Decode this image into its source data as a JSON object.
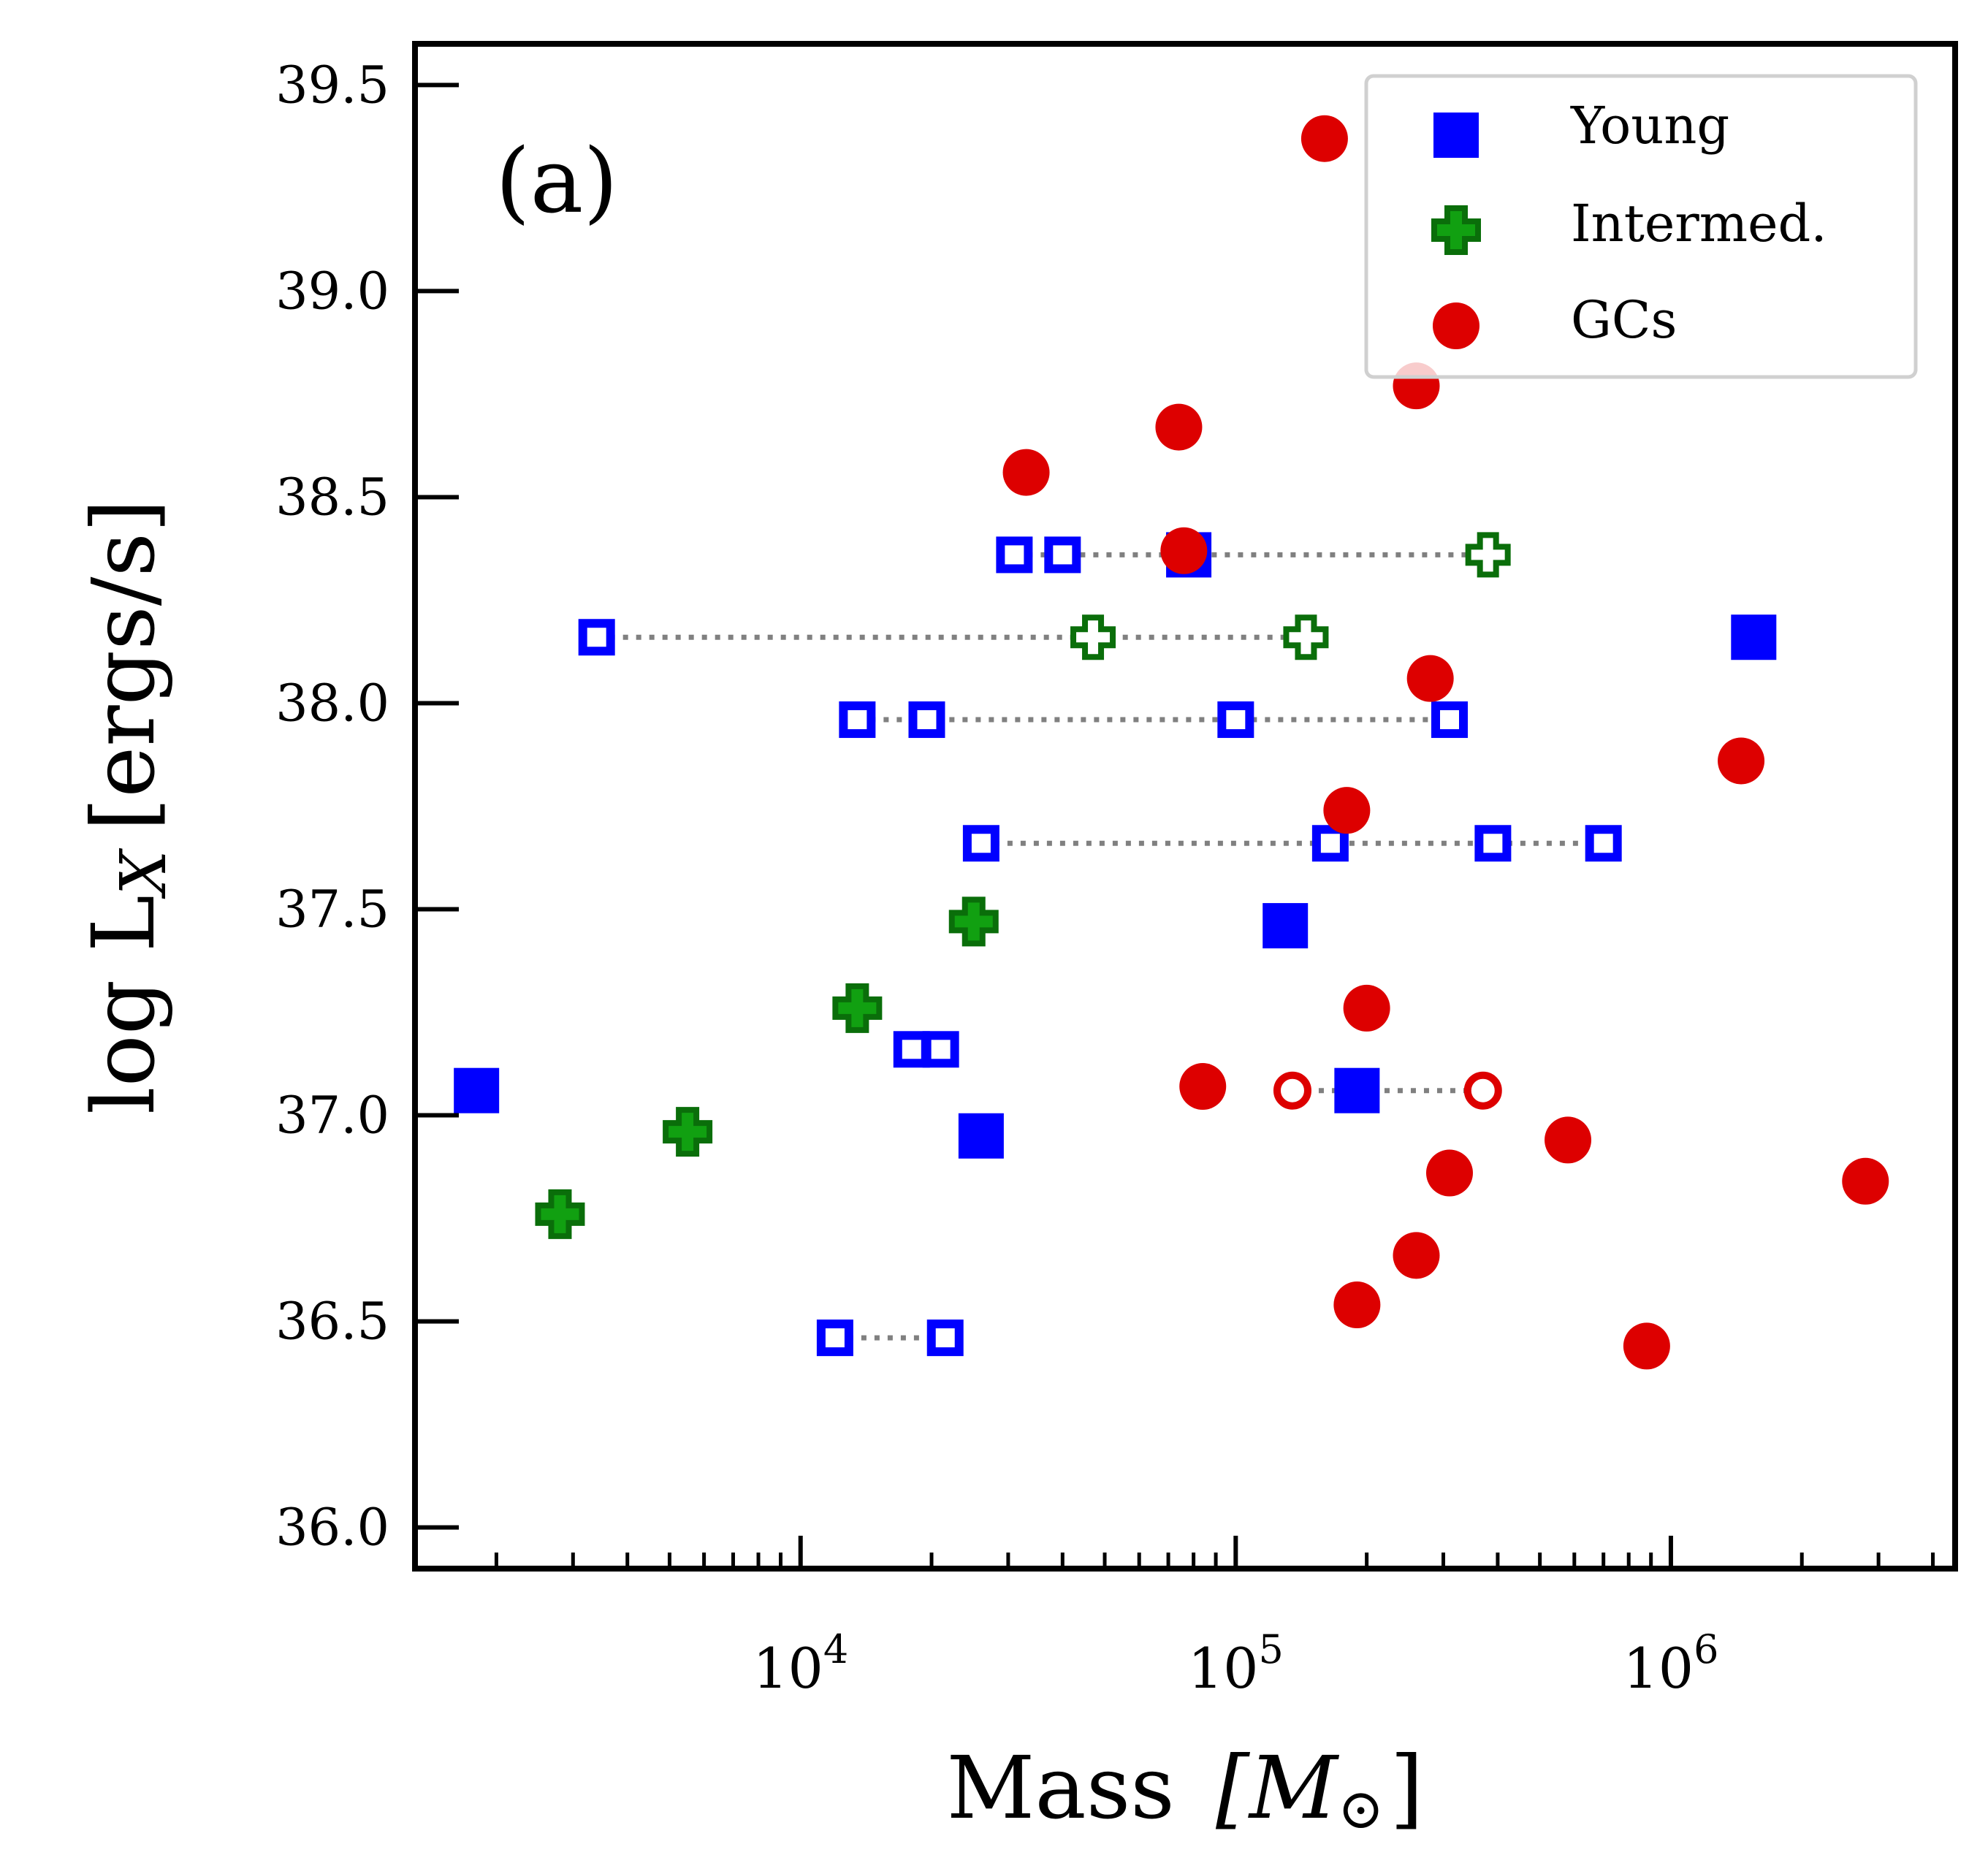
{
  "chart_data": {
    "type": "scatter",
    "panel_label": "(a)",
    "xlabel_main": "Mass",
    "xlabel_unit": "[M",
    "xlabel_sun": "⊙",
    "xlabel_close": "]",
    "ylabel": "log L",
    "ylabel_sub": "X",
    "ylabel_unit": "[ergs/s]",
    "xscale": "log",
    "xlim": [
      1300,
      4500000
    ],
    "ylim": [
      35.9,
      39.6
    ],
    "xticks": [
      {
        "base": "10",
        "exp": "4",
        "value": 10000
      },
      {
        "base": "10",
        "exp": "5",
        "value": 100000
      },
      {
        "base": "10",
        "exp": "6",
        "value": 1000000
      }
    ],
    "yticks": [
      "36.0",
      "36.5",
      "37.0",
      "37.5",
      "38.0",
      "38.5",
      "39.0",
      "39.5"
    ],
    "legend": {
      "position": "top-right",
      "entries": [
        {
          "label": "Young",
          "marker": "square",
          "color": "#0000ff"
        },
        {
          "label": "Intermed.",
          "marker": "plus",
          "color": "#11a011",
          "edge": "#0a5f0a"
        },
        {
          "label": "GCs",
          "marker": "circle",
          "color": "#dd0000"
        }
      ]
    },
    "colors": {
      "young": "#0000ff",
      "intermediate": "#11a011",
      "intermediate_edge": "#0a6e0a",
      "gcs": "#dd0000",
      "links": "#808080"
    },
    "series": [
      {
        "name": "Young",
        "marker": "square",
        "filled": [
          {
            "x": 1800,
            "y": 37.06
          },
          {
            "x": 26000,
            "y": 36.95
          },
          {
            "x": 78000,
            "y": 38.36
          },
          {
            "x": 130000,
            "y": 37.46
          },
          {
            "x": 190000,
            "y": 37.06
          },
          {
            "x": 1550000,
            "y": 38.16
          }
        ],
        "open_groups": [
          {
            "y": 38.36,
            "x": [
              31000,
              40000
            ]
          },
          {
            "y": 38.16,
            "x": [
              3400
            ]
          },
          {
            "y": 37.96,
            "x": [
              13500,
              19500,
              100000,
              310000
            ]
          },
          {
            "y": 37.66,
            "x": [
              26000,
              165000,
              390000,
              700000
            ]
          },
          {
            "y": 37.16,
            "x": [
              18000,
              21000
            ]
          },
          {
            "y": 36.46,
            "x": [
              12000,
              21500
            ]
          }
        ]
      },
      {
        "name": "Intermed.",
        "marker": "plus",
        "filled": [
          {
            "x": 2800,
            "y": 36.76
          },
          {
            "x": 5500,
            "y": 36.96
          },
          {
            "x": 13500,
            "y": 37.26
          },
          {
            "x": 25000,
            "y": 37.47
          }
        ],
        "open": [
          {
            "x": 47000,
            "y": 38.16
          },
          {
            "x": 145000,
            "y": 38.16
          },
          {
            "x": 380000,
            "y": 38.36
          }
        ]
      },
      {
        "name": "GCs",
        "marker": "circle",
        "filled": [
          {
            "x": 160000,
            "y": 39.37
          },
          {
            "x": 260000,
            "y": 38.77
          },
          {
            "x": 74000,
            "y": 38.67
          },
          {
            "x": 33000,
            "y": 38.56
          },
          {
            "x": 76000,
            "y": 38.37
          },
          {
            "x": 280000,
            "y": 38.06
          },
          {
            "x": 1450000,
            "y": 37.86
          },
          {
            "x": 180000,
            "y": 37.74
          },
          {
            "x": 200000,
            "y": 37.26
          },
          {
            "x": 84000,
            "y": 37.07
          },
          {
            "x": 580000,
            "y": 36.94
          },
          {
            "x": 310000,
            "y": 36.86
          },
          {
            "x": 2800000,
            "y": 36.84
          },
          {
            "x": 260000,
            "y": 36.66
          },
          {
            "x": 190000,
            "y": 36.54
          },
          {
            "x": 880000,
            "y": 36.44
          }
        ],
        "open": [
          {
            "x": 135000,
            "y": 37.06
          },
          {
            "x": 370000,
            "y": 37.06
          }
        ]
      }
    ],
    "links": [
      {
        "y": 38.36,
        "x": [
          31000,
          380000
        ]
      },
      {
        "y": 38.16,
        "x": [
          3400,
          145000
        ]
      },
      {
        "y": 37.96,
        "x": [
          13500,
          310000
        ]
      },
      {
        "y": 37.66,
        "x": [
          26000,
          700000
        ]
      },
      {
        "y": 37.16,
        "x": [
          18000,
          21000
        ]
      },
      {
        "y": 37.06,
        "x": [
          135000,
          370000
        ]
      },
      {
        "y": 36.46,
        "x": [
          12000,
          21500
        ]
      }
    ]
  }
}
